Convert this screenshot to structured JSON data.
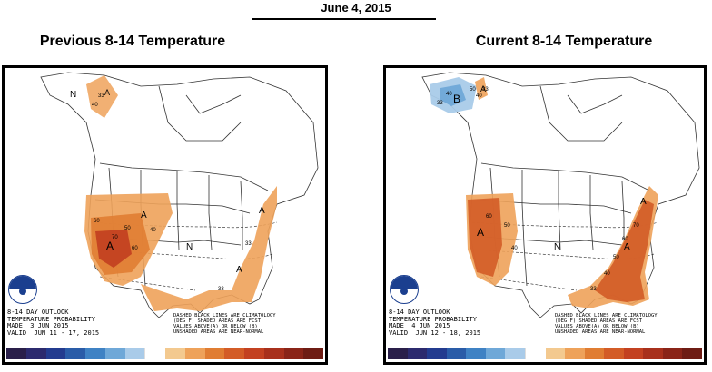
{
  "header": {
    "date": "June 4, 2015"
  },
  "panels": [
    {
      "title": "Previous 8-14 Temperature",
      "outlook": {
        "line1": "8-14 DAY OUTLOOK",
        "line2": "TEMPERATURE PROBABILITY",
        "line3": "MADE  3 JUN 2015",
        "line4": "VALID  JUN 11 - 17, 2015"
      },
      "notes": {
        "line1": "DASHED BLACK LINES ARE CLIMATOLOGY",
        "line2": "(DEG F) SHADED AREAS ARE FCST",
        "line3": "VALUES ABOVE(A) OR BELOW (B)",
        "line4": "UNSHADED AREAS ARE NEAR-NORMAL"
      },
      "labels": [
        "N",
        "A",
        "A",
        "A",
        "A",
        "N",
        "A"
      ],
      "contour_labels": [
        "33",
        "40",
        "60",
        "50",
        "70",
        "60",
        "40",
        "33",
        "33"
      ]
    },
    {
      "title": "Current 8-14 Temperature",
      "outlook": {
        "line1": "8-14 DAY OUTLOOK",
        "line2": "TEMPERATURE PROBABILITY",
        "line3": "MADE  4 JUN 2015",
        "line4": "VALID  JUN 12 - 18, 2015"
      },
      "notes": {
        "line1": "DASHED BLACK LINES ARE CLIMATOLOGY",
        "line2": "(DEG F) SHADED AREAS ARE FCST",
        "line3": "VALUES ABOVE(A) OR BELOW (B)",
        "line4": "UNSHADED AREAS ARE NEAR-NORMAL"
      },
      "labels": [
        "B",
        "A",
        "A",
        "N",
        "A",
        "A"
      ],
      "contour_labels": [
        "40",
        "33",
        "50",
        "40",
        "33",
        "60",
        "50",
        "40",
        "70",
        "60",
        "50",
        "40",
        "33"
      ]
    }
  ],
  "legend_colors": [
    "#2a1f4a",
    "#2c2a6e",
    "#233b8f",
    "#2a5ca8",
    "#3f82c4",
    "#6fa8d8",
    "#a9cbe9",
    "#ffffff",
    "#f3c98f",
    "#eea25a",
    "#e07d33",
    "#d35c27",
    "#c34121",
    "#a8301c",
    "#8a2418",
    "#6e1c14"
  ],
  "colors": {
    "above_light": "#f3c98f",
    "above_mid": "#eea25a",
    "above_strong": "#e07d33",
    "above_deep": "#d35c27",
    "below_light": "#a9cbe9",
    "below_mid": "#6fa8d8"
  },
  "icons": [
    "noaa-logo"
  ]
}
